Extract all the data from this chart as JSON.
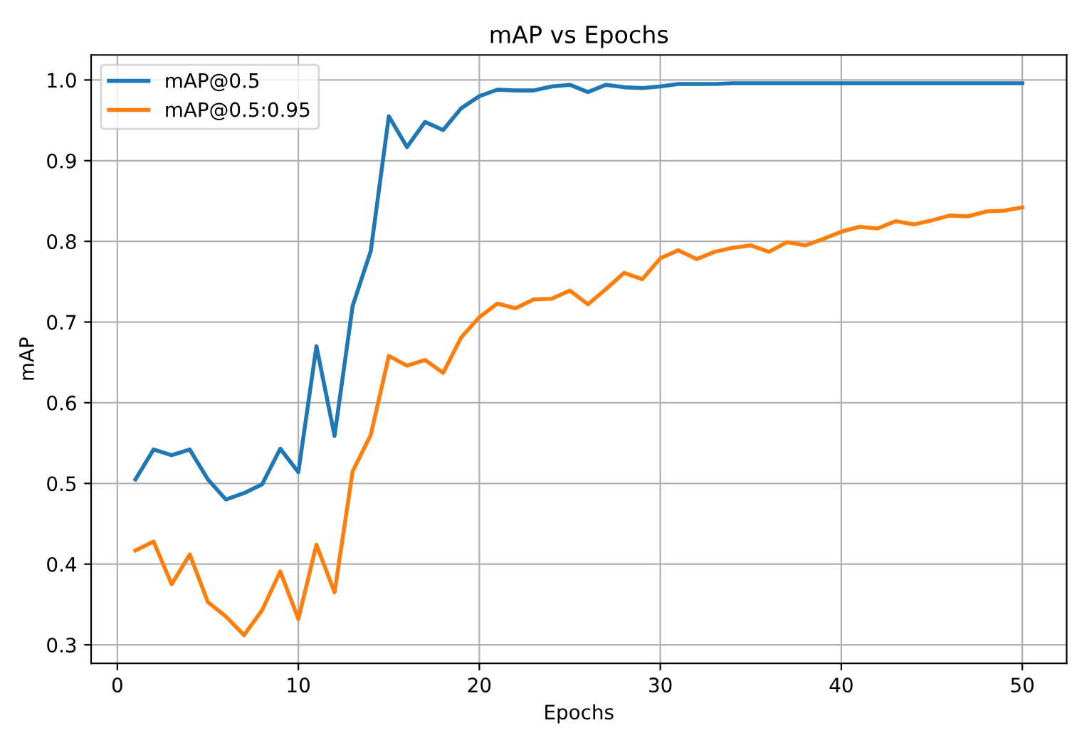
{
  "chart_data": {
    "type": "line",
    "title": "mAP vs Epochs",
    "xlabel": "Epochs",
    "ylabel": "mAP",
    "x": [
      1,
      2,
      3,
      4,
      5,
      6,
      7,
      8,
      9,
      10,
      11,
      12,
      13,
      14,
      15,
      16,
      17,
      18,
      19,
      20,
      21,
      22,
      23,
      24,
      25,
      26,
      27,
      28,
      29,
      30,
      31,
      32,
      33,
      34,
      35,
      36,
      37,
      38,
      39,
      40,
      41,
      42,
      43,
      44,
      45,
      46,
      47,
      48,
      49,
      50
    ],
    "series": [
      {
        "name": "mAP@0.5",
        "color": "#1f77b4",
        "values": [
          0.505,
          0.542,
          0.535,
          0.542,
          0.505,
          0.48,
          0.488,
          0.499,
          0.543,
          0.514,
          0.67,
          0.559,
          0.72,
          0.788,
          0.955,
          0.917,
          0.948,
          0.938,
          0.965,
          0.98,
          0.988,
          0.987,
          0.987,
          0.992,
          0.994,
          0.985,
          0.994,
          0.991,
          0.99,
          0.992,
          0.995,
          0.995,
          0.995,
          0.996,
          0.996,
          0.996,
          0.996,
          0.996,
          0.996,
          0.996,
          0.996,
          0.996,
          0.996,
          0.996,
          0.996,
          0.996,
          0.996,
          0.996,
          0.996,
          0.996
        ]
      },
      {
        "name": "mAP@0.5:0.95",
        "color": "#ff7f0e",
        "values": [
          0.417,
          0.428,
          0.375,
          0.412,
          0.353,
          0.335,
          0.312,
          0.343,
          0.391,
          0.332,
          0.424,
          0.365,
          0.515,
          0.56,
          0.658,
          0.646,
          0.653,
          0.637,
          0.681,
          0.706,
          0.723,
          0.717,
          0.728,
          0.729,
          0.739,
          0.722,
          0.741,
          0.761,
          0.753,
          0.779,
          0.789,
          0.778,
          0.787,
          0.792,
          0.795,
          0.787,
          0.799,
          0.795,
          0.803,
          0.812,
          0.818,
          0.816,
          0.825,
          0.821,
          0.826,
          0.832,
          0.831,
          0.837,
          0.838,
          0.842
        ]
      }
    ],
    "xlim": [
      -1.45,
      52.45
    ],
    "ylim": [
      0.277,
      1.031
    ],
    "xticks": [
      0,
      10,
      20,
      30,
      40,
      50
    ],
    "yticks": [
      0.3,
      0.4,
      0.5,
      0.6,
      0.7,
      0.8,
      0.9,
      {
        "value": 1.0,
        "label": "1.0"
      }
    ],
    "grid": true,
    "legend": "top left",
    "marker": "none",
    "line_style": "solid"
  }
}
